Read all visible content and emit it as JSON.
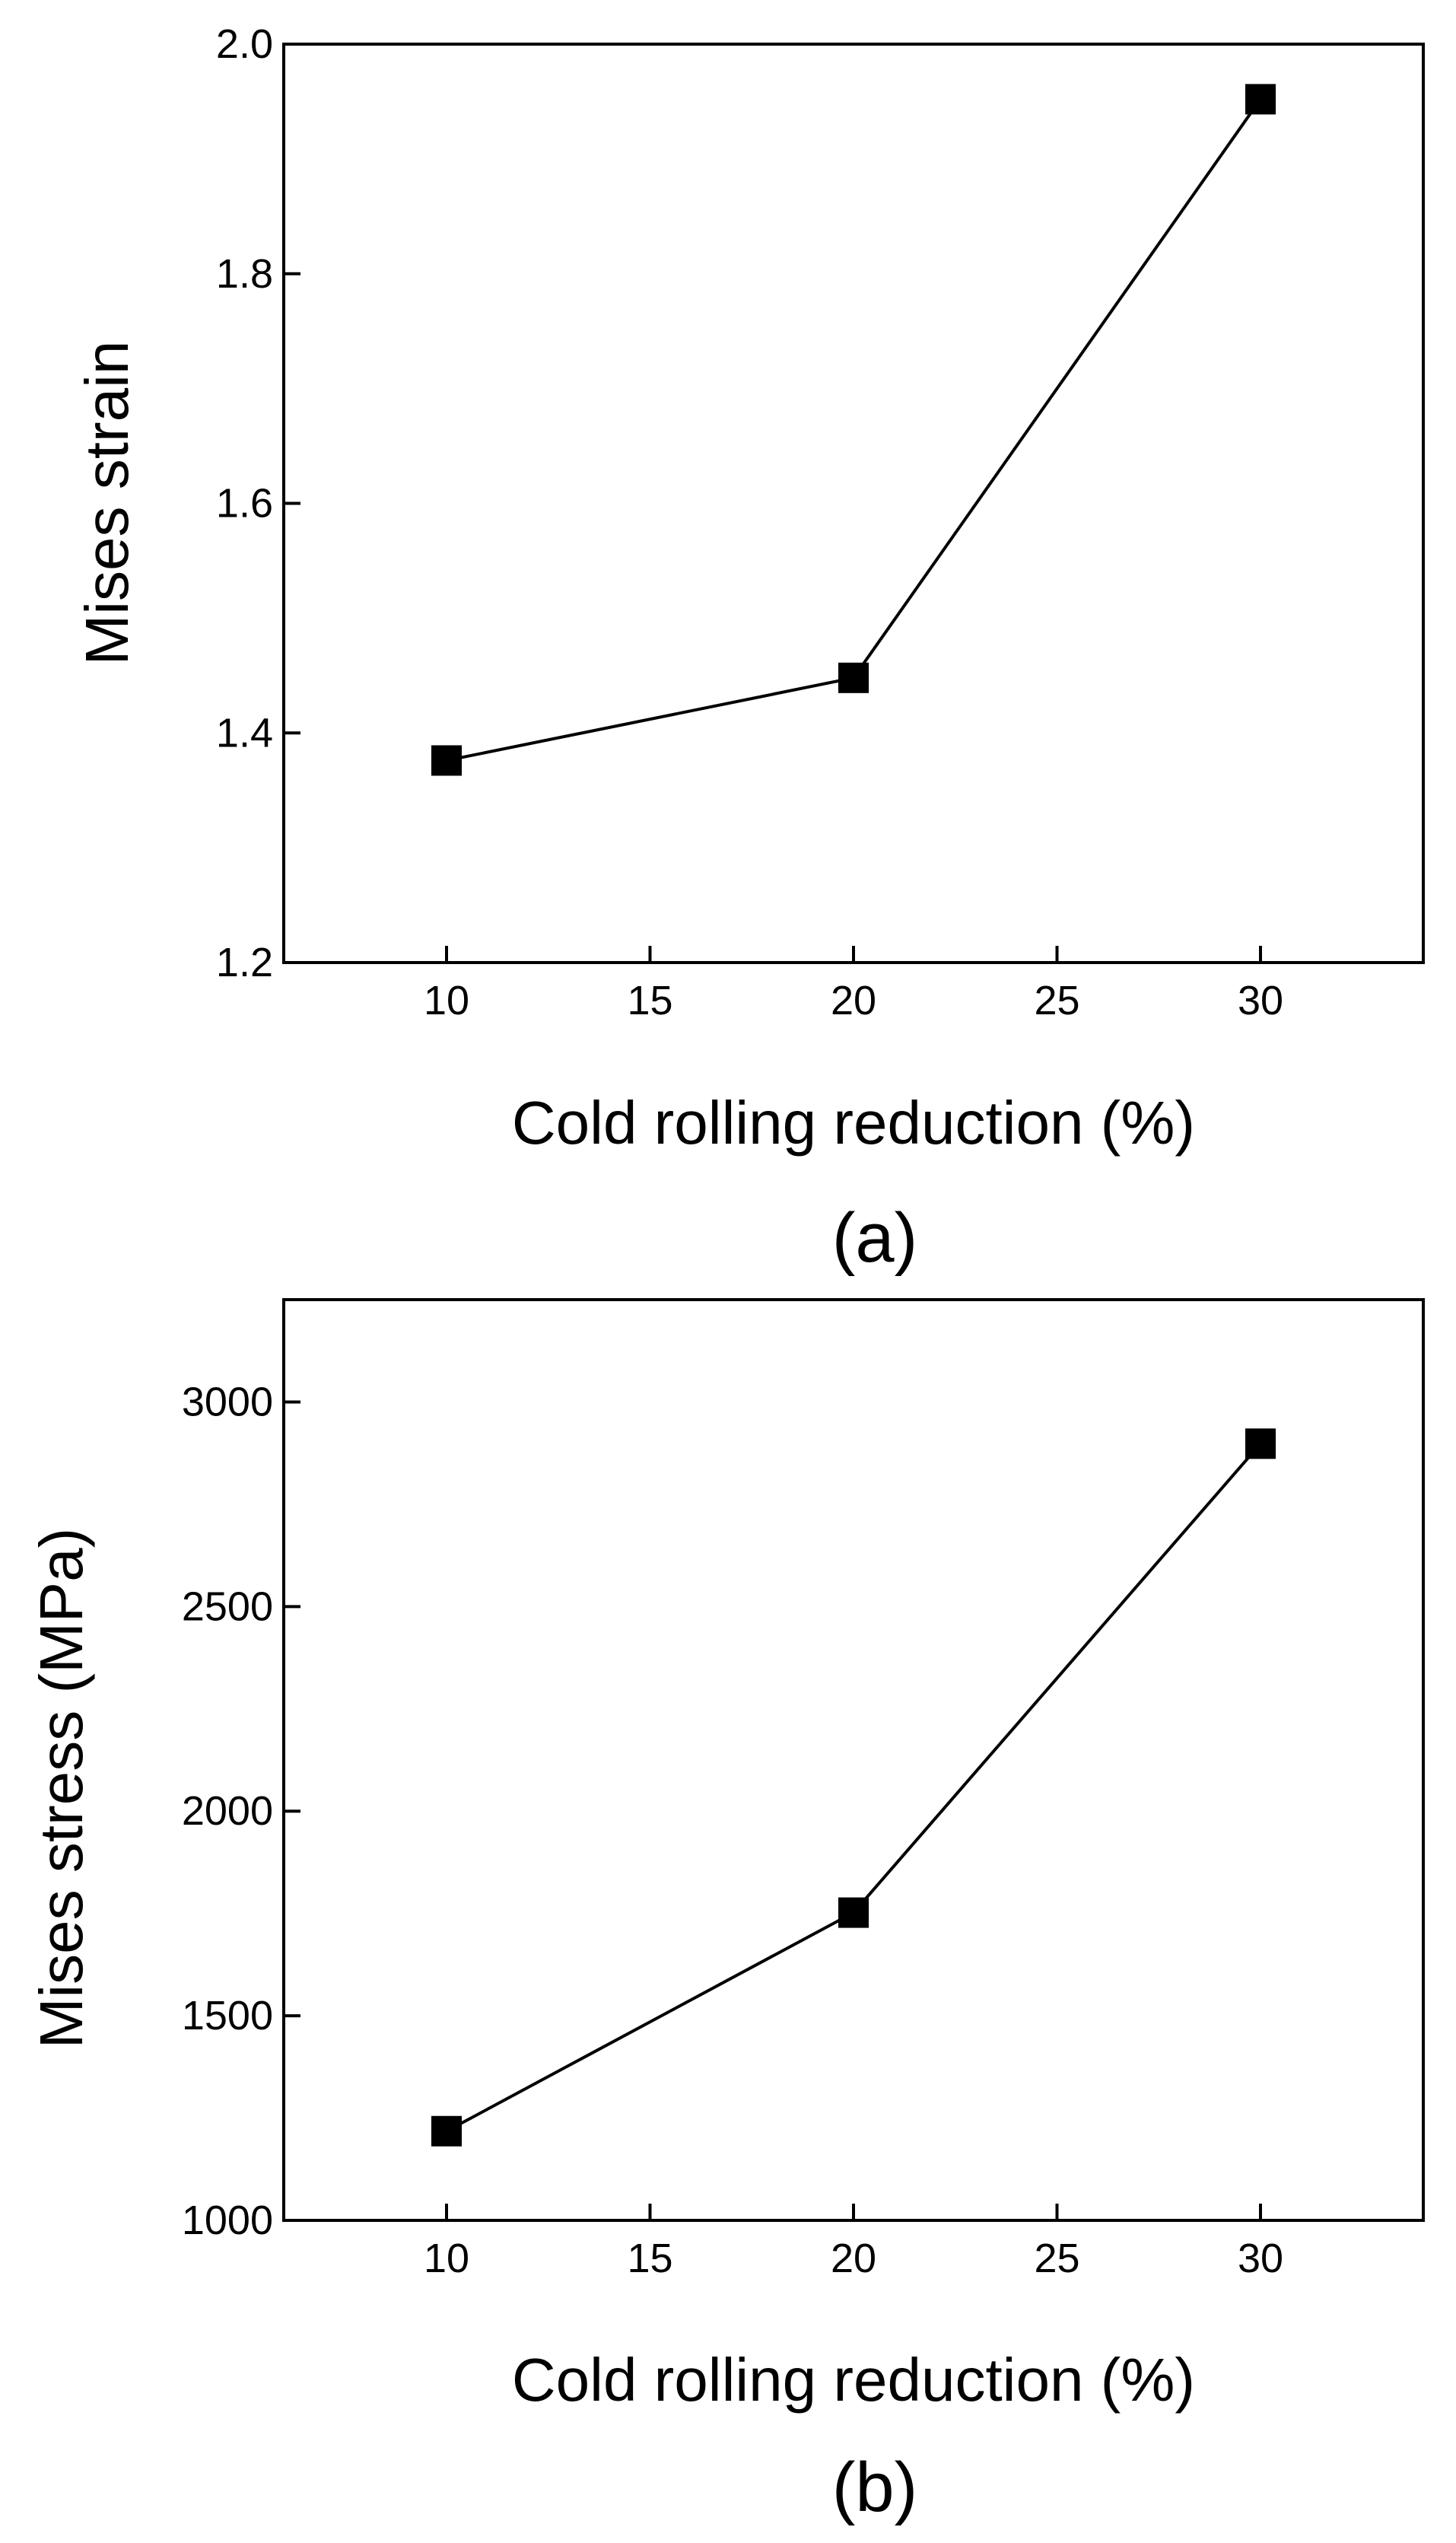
{
  "chart_data": [
    {
      "type": "line",
      "panel_label": "(a)",
      "xlabel": "Cold rolling reduction (%)",
      "ylabel": "Mises strain",
      "xlim": [
        6,
        34
      ],
      "ylim": [
        1.2,
        2.0
      ],
      "xticks": [
        10,
        15,
        20,
        25,
        30
      ],
      "yticks": [
        1.2,
        1.4,
        1.6,
        1.8,
        2.0
      ],
      "xtick_labels": [
        "10",
        "15",
        "20",
        "25",
        "30"
      ],
      "ytick_labels": [
        "1.2",
        "1.4",
        "1.6",
        "1.8",
        "2.0"
      ],
      "grid": false,
      "marker": "square",
      "series": [
        {
          "name": "Mises strain",
          "x": [
            10,
            20,
            30
          ],
          "y": [
            1.376,
            1.448,
            1.952
          ]
        }
      ]
    },
    {
      "type": "line",
      "panel_label": "(b)",
      "xlabel": "Cold rolling reduction (%)",
      "ylabel": "Mises stress (MPa)",
      "xlim": [
        6,
        34
      ],
      "ylim": [
        1000,
        3250
      ],
      "xticks": [
        10,
        15,
        20,
        25,
        30
      ],
      "yticks": [
        1000,
        1500,
        2000,
        2500,
        3000
      ],
      "xtick_labels": [
        "10",
        "15",
        "20",
        "25",
        "30"
      ],
      "ytick_labels": [
        "1000",
        "1500",
        "2000",
        "2500",
        "3000"
      ],
      "grid": false,
      "marker": "square",
      "series": [
        {
          "name": "Mises stress",
          "x": [
            10,
            20,
            30
          ],
          "y": [
            1218,
            1752,
            2898
          ]
        }
      ]
    }
  ]
}
